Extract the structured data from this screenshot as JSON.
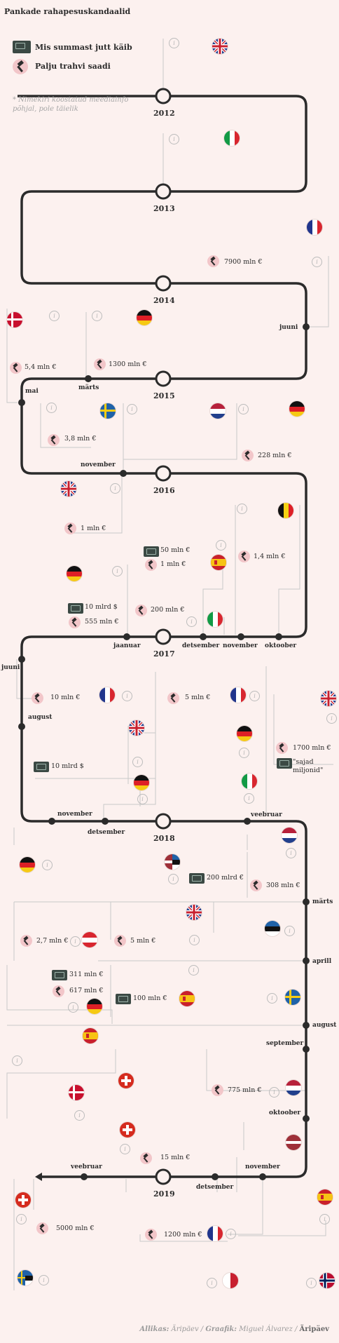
{
  "title": "Pankade rahapesuskandaalid",
  "legend": {
    "amount_label": "Mis summast jutt käib",
    "fine_label": "Palju trahvi saadi"
  },
  "note": "* Nimekiri koostatud meediainfo põhjal, pole täielik",
  "years": [
    "2012",
    "2013",
    "2014",
    "2015",
    "2016",
    "2017",
    "2018",
    "2019"
  ],
  "months": {
    "m2014_juuni": "juuni",
    "m2015_mai": "mai",
    "m2015_marts": "märts",
    "m2016_november": "november",
    "m2016_jaanuar": "jaanuar",
    "m2016_detsember": "detsember",
    "m2016_november2": "november",
    "m2016_oktoober": "oktoober",
    "m2017_juuni": "juuni",
    "m2017_august": "august",
    "m2017_november": "november",
    "m2017_detsember": "detsember",
    "m2018_veebruar": "veebruar",
    "m2018_marts": "märts",
    "m2018_aprill": "aprill",
    "m2018_august": "august",
    "m2018_september": "september",
    "m2018_oktoober": "oktoober",
    "m2018_november": "november",
    "m2018_detsember": "detsember",
    "m2019_veebruar": "veebruar"
  },
  "amounts": {
    "a1": "7900 mln €",
    "a2": "5,4 mln €",
    "a3": "1300 mln €",
    "a4": "3,8 mln €",
    "a5": "228 mln €",
    "a6": "1 mln €",
    "a7": "50 mln €",
    "a8": "1 mln €",
    "a9": "1,4 mln €",
    "a10": "200 mln €",
    "a11": "10 mlrd $",
    "a12": "555 mln €",
    "a13": "10 mln €",
    "a14": "5 mln €",
    "a15": "1700 mln €",
    "a16": "\"sajad miljonid\"",
    "a17": "10 mlrd $",
    "a18": "200 mlrd €",
    "a19": "308 mln €",
    "a20": "2,7 mln €",
    "a21": "5 mln €",
    "a22": "311 mln €",
    "a23": "617 mln €",
    "a24": "100 mln €",
    "a25": "775 mln €",
    "a26": "15 mln €",
    "a27": "5000 mln €",
    "a28": "1200 mln €"
  },
  "info_glyph": "i",
  "icons": {
    "fine": "gavel-icon",
    "amount": "banknote-icon",
    "info": "info-icon"
  },
  "colors": {
    "background": "#fcf1ef",
    "timeline": "#2b2b2b",
    "connector": "#c9c9c9",
    "gavel_bg": "#f2c6c9"
  },
  "source": {
    "label": "Allikas:",
    "value": "Äripäev",
    "graphic_label": "Graafik:",
    "graphic_value": "Miguel Álvarez",
    "brand": "Äripäev"
  }
}
